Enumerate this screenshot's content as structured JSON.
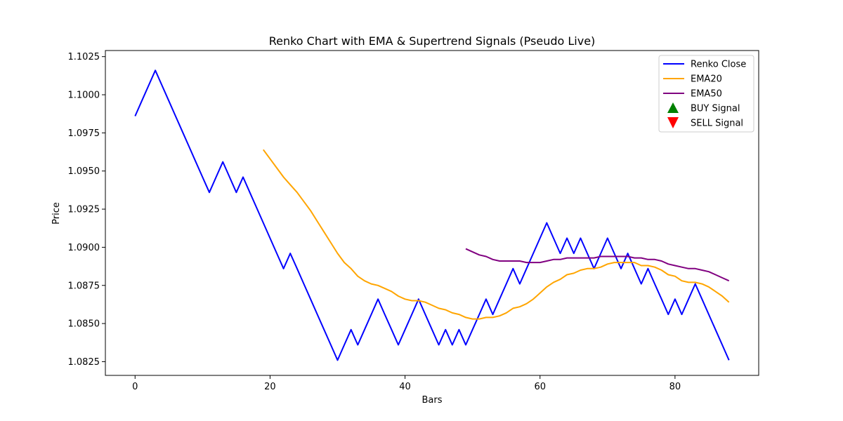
{
  "chart_data": {
    "type": "line",
    "title": "Renko Chart with EMA & Supertrend Signals (Pseudo Live)",
    "xlabel": "Bars",
    "ylabel": "Price",
    "xlim": [
      -4.4,
      92.4
    ],
    "ylim": [
      1.0816,
      1.1029
    ],
    "x_ticks": [
      0,
      20,
      40,
      60,
      80
    ],
    "x_tick_labels": [
      "0",
      "20",
      "40",
      "60",
      "80"
    ],
    "y_ticks": [
      1.0825,
      1.085,
      1.0875,
      1.09,
      1.0925,
      1.095,
      1.0975,
      1.1,
      1.1025
    ],
    "y_tick_labels": [
      "1.0825",
      "1.0850",
      "1.0875",
      "1.0900",
      "1.0925",
      "1.0950",
      "1.0975",
      "1.1000",
      "1.1025"
    ],
    "grid": false,
    "legend_position": "top-right",
    "legend": [
      {
        "label": "Renko Close",
        "kind": "line",
        "color": "#0000ff"
      },
      {
        "label": "EMA20",
        "kind": "line",
        "color": "#ffa500"
      },
      {
        "label": "EMA50",
        "kind": "line",
        "color": "#800080"
      },
      {
        "label": "BUY Signal",
        "kind": "marker-up",
        "color": "#008000"
      },
      {
        "label": "SELL Signal",
        "kind": "marker-down",
        "color": "#ff0000"
      }
    ],
    "series": [
      {
        "name": "Renko Close",
        "color": "#0000ff",
        "x": [
          0,
          1,
          2,
          3,
          4,
          5,
          6,
          7,
          8,
          9,
          10,
          11,
          12,
          13,
          14,
          15,
          16,
          17,
          18,
          19,
          20,
          21,
          22,
          23,
          24,
          25,
          26,
          27,
          28,
          29,
          30,
          31,
          32,
          33,
          34,
          35,
          36,
          37,
          38,
          39,
          40,
          41,
          42,
          43,
          44,
          45,
          46,
          47,
          48,
          49,
          50,
          51,
          52,
          53,
          54,
          55,
          56,
          57,
          58,
          59,
          60,
          61,
          62,
          63,
          64,
          65,
          66,
          67,
          68,
          69,
          70,
          71,
          72,
          73,
          74,
          75,
          76,
          77,
          78,
          79,
          80,
          81,
          82,
          83,
          84,
          85,
          86,
          87,
          88
        ],
        "y": [
          1.0986,
          1.0996,
          1.1006,
          1.1016,
          1.1006,
          1.0996,
          1.0986,
          1.0976,
          1.0966,
          1.0956,
          1.0946,
          1.0936,
          1.0946,
          1.0956,
          1.0946,
          1.0936,
          1.0946,
          1.0936,
          1.0926,
          1.0916,
          1.0906,
          1.0896,
          1.0886,
          1.0896,
          1.0886,
          1.0876,
          1.0866,
          1.0856,
          1.0846,
          1.0836,
          1.0826,
          1.0836,
          1.0846,
          1.0836,
          1.0846,
          1.0856,
          1.0866,
          1.0856,
          1.0846,
          1.0836,
          1.0846,
          1.0856,
          1.0866,
          1.0856,
          1.0846,
          1.0836,
          1.0846,
          1.0836,
          1.0846,
          1.0836,
          1.0846,
          1.0856,
          1.0866,
          1.0856,
          1.0866,
          1.0876,
          1.0886,
          1.0876,
          1.0886,
          1.0896,
          1.0906,
          1.0916,
          1.0906,
          1.0896,
          1.0906,
          1.0896,
          1.0906,
          1.0896,
          1.0886,
          1.0896,
          1.0906,
          1.0896,
          1.0886,
          1.0896,
          1.0886,
          1.0876,
          1.0886,
          1.0876,
          1.0866,
          1.0856,
          1.0866,
          1.0856,
          1.0866,
          1.0876,
          1.0866,
          1.0856,
          1.0846,
          1.0836,
          1.0826
        ]
      },
      {
        "name": "EMA20",
        "color": "#ffa500",
        "x": [
          19,
          20,
          21,
          22,
          23,
          24,
          25,
          26,
          27,
          28,
          29,
          30,
          31,
          32,
          33,
          34,
          35,
          36,
          37,
          38,
          39,
          40,
          41,
          42,
          43,
          44,
          45,
          46,
          47,
          48,
          49,
          50,
          51,
          52,
          53,
          54,
          55,
          56,
          57,
          58,
          59,
          60,
          61,
          62,
          63,
          64,
          65,
          66,
          67,
          68,
          69,
          70,
          71,
          72,
          73,
          74,
          75,
          76,
          77,
          78,
          79,
          80,
          81,
          82,
          83,
          84,
          85,
          86,
          87,
          88
        ],
        "y": [
          1.0964,
          1.0958,
          1.0952,
          1.0946,
          1.0941,
          1.0936,
          1.093,
          1.0924,
          1.0917,
          1.091,
          1.0903,
          1.0896,
          1.089,
          1.0886,
          1.0881,
          1.0878,
          1.0876,
          1.0875,
          1.0873,
          1.0871,
          1.0868,
          1.0866,
          1.0865,
          1.0865,
          1.0864,
          1.0862,
          1.086,
          1.0859,
          1.0857,
          1.0856,
          1.0854,
          1.0853,
          1.0853,
          1.0854,
          1.0854,
          1.0855,
          1.0857,
          1.086,
          1.0861,
          1.0863,
          1.0866,
          1.087,
          1.0874,
          1.0877,
          1.0879,
          1.0882,
          1.0883,
          1.0885,
          1.0886,
          1.0886,
          1.0887,
          1.0889,
          1.089,
          1.089,
          1.089,
          1.089,
          1.0888,
          1.0888,
          1.0887,
          1.0885,
          1.0882,
          1.0881,
          1.0878,
          1.0877,
          1.0877,
          1.0876,
          1.0874,
          1.0871,
          1.0868,
          1.0864
        ]
      },
      {
        "name": "EMA50",
        "color": "#800080",
        "x": [
          49,
          50,
          51,
          52,
          53,
          54,
          55,
          56,
          57,
          58,
          59,
          60,
          61,
          62,
          63,
          64,
          65,
          66,
          67,
          68,
          69,
          70,
          71,
          72,
          73,
          74,
          75,
          76,
          77,
          78,
          79,
          80,
          81,
          82,
          83,
          84,
          85,
          86,
          87,
          88
        ],
        "y": [
          1.0899,
          1.0897,
          1.0895,
          1.0894,
          1.0892,
          1.0891,
          1.0891,
          1.0891,
          1.0891,
          1.089,
          1.089,
          1.089,
          1.0891,
          1.0892,
          1.0892,
          1.0893,
          1.0893,
          1.0893,
          1.0893,
          1.0893,
          1.0894,
          1.0894,
          1.0894,
          1.0894,
          1.0894,
          1.0893,
          1.0893,
          1.0892,
          1.0892,
          1.0891,
          1.0889,
          1.0888,
          1.0887,
          1.0886,
          1.0886,
          1.0885,
          1.0884,
          1.0882,
          1.088,
          1.0878
        ]
      }
    ],
    "buy_signals": [],
    "sell_signals": []
  }
}
